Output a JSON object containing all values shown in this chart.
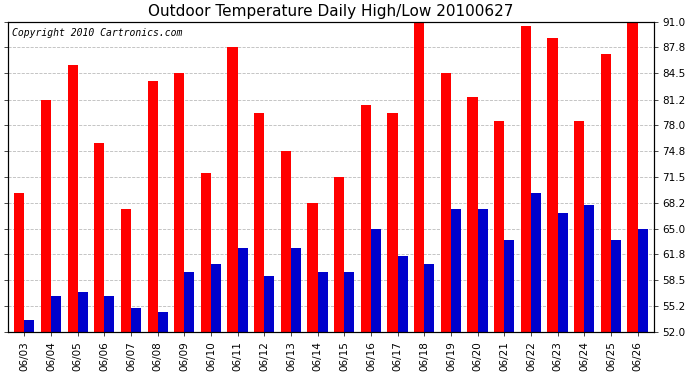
{
  "title": "Outdoor Temperature Daily High/Low 20100627",
  "copyright": "Copyright 2010 Cartronics.com",
  "dates": [
    "06/03",
    "06/04",
    "06/05",
    "06/06",
    "06/07",
    "06/08",
    "06/09",
    "06/10",
    "06/11",
    "06/12",
    "06/13",
    "06/14",
    "06/15",
    "06/16",
    "06/17",
    "06/18",
    "06/19",
    "06/20",
    "06/21",
    "06/22",
    "06/23",
    "06/24",
    "06/25",
    "06/26"
  ],
  "highs": [
    69.5,
    81.2,
    85.5,
    75.8,
    67.5,
    83.5,
    84.5,
    72.0,
    87.8,
    79.5,
    74.8,
    68.2,
    71.5,
    80.5,
    79.5,
    91.5,
    84.5,
    81.5,
    78.5,
    90.5,
    89.0,
    78.5,
    87.0,
    91.0
  ],
  "lows": [
    53.5,
    56.5,
    57.0,
    56.5,
    55.0,
    54.5,
    59.5,
    60.5,
    62.5,
    59.0,
    62.5,
    59.5,
    59.5,
    65.0,
    61.5,
    60.5,
    67.5,
    67.5,
    63.5,
    69.5,
    67.0,
    68.0,
    63.5,
    65.0
  ],
  "high_color": "#ff0000",
  "low_color": "#0000cc",
  "ylim_min": 52.0,
  "ylim_max": 91.0,
  "yticks": [
    52.0,
    55.2,
    58.5,
    61.8,
    65.0,
    68.2,
    71.5,
    74.8,
    78.0,
    81.2,
    84.5,
    87.8,
    91.0
  ],
  "background_color": "#ffffff",
  "grid_color": "#bbbbbb",
  "title_fontsize": 11,
  "copyright_fontsize": 7,
  "tick_fontsize": 7.5
}
